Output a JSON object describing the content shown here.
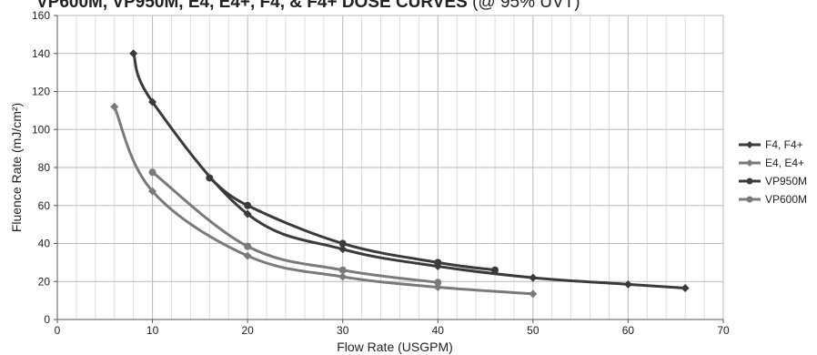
{
  "chart_data": {
    "type": "line",
    "title": "VP600M, VP950M, E4, E4+, F4, & F4+ DOSE CURVES",
    "subtitle": "(@ 95% UVT)",
    "xlabel": "Flow Rate (USGPM)",
    "ylabel": "Fluence Rate (mJ/cm²)",
    "xlim": [
      0,
      70
    ],
    "ylim": [
      0,
      160
    ],
    "x_ticks": [
      "0",
      "10",
      "20",
      "30",
      "40",
      "50",
      "60",
      "70"
    ],
    "y_ticks": [
      "0",
      "20",
      "40",
      "60",
      "80",
      "100",
      "120",
      "140",
      "160"
    ],
    "grid": true,
    "legend_position": "right",
    "series": [
      {
        "name": "F4, F4+",
        "color": "#3a3a3a",
        "marker": "diamond",
        "x": [
          8,
          10,
          20,
          30,
          40,
          50,
          60,
          66
        ],
        "y": [
          140,
          114.5,
          55.5,
          37,
          28,
          22,
          18.5,
          16.5
        ]
      },
      {
        "name": "E4, E4+",
        "color": "#7a7a7a",
        "marker": "diamond",
        "x": [
          6,
          10,
          20,
          30,
          40,
          50
        ],
        "y": [
          112,
          67.5,
          33.5,
          22.5,
          17,
          13.5
        ]
      },
      {
        "name": "VP950M",
        "color": "#3a3a3a",
        "marker": "circle",
        "x": [
          16,
          20,
          30,
          40,
          46
        ],
        "y": [
          74.5,
          60,
          40,
          30,
          26
        ]
      },
      {
        "name": "VP600M",
        "color": "#7a7a7a",
        "marker": "circle",
        "x": [
          10,
          20,
          30,
          40
        ],
        "y": [
          77.5,
          38.5,
          26,
          19.5
        ]
      }
    ]
  }
}
